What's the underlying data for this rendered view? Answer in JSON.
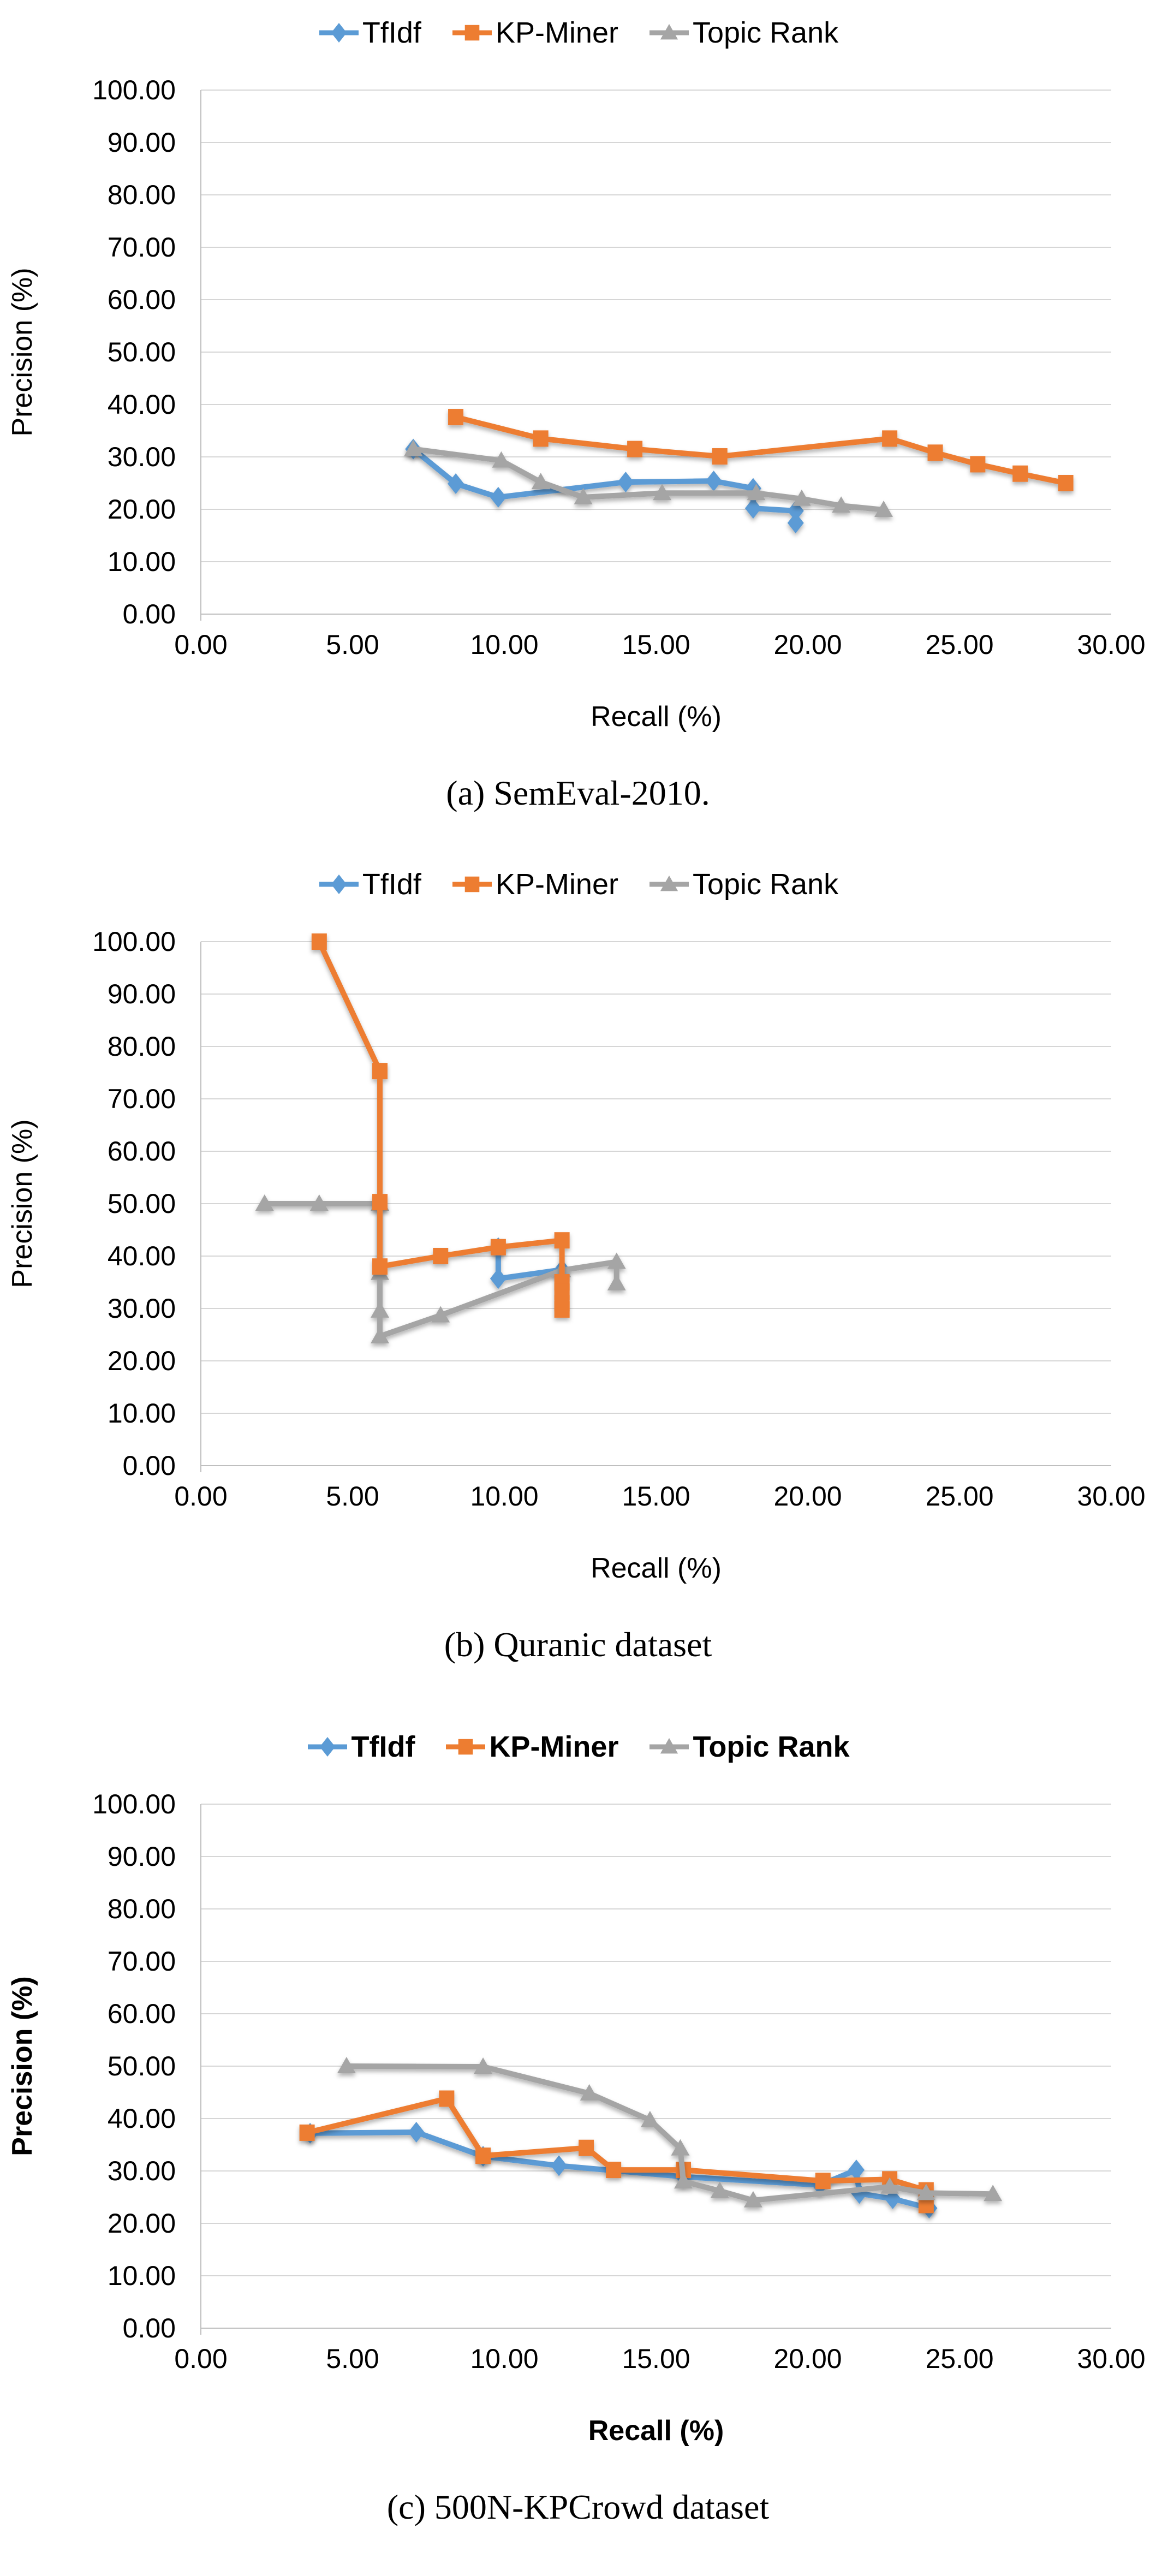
{
  "figure": {
    "background": "#ffffff",
    "text_color": "#000000",
    "gridline_color": "#D6D6D6",
    "axis_line_color": "#BFBFBF"
  },
  "chart_data": [
    {
      "id": "a",
      "type": "line",
      "caption": "(a) SemEval-2010.",
      "xlabel": "Recall (%)",
      "ylabel": "Precision (%)",
      "xlim": [
        0,
        30
      ],
      "ylim": [
        0,
        100
      ],
      "x_tick_step": 5,
      "y_tick_step": 10,
      "tick_decimals": 2,
      "grid": true,
      "legend_position": "top-center",
      "bold_labels": false,
      "draw_order": [
        0,
        2,
        1
      ],
      "series": [
        {
          "name": "TfIdf",
          "color": "#5B9BD5",
          "marker": "diamond",
          "points": [
            [
              7.0,
              31.5
            ],
            [
              8.4,
              24.9
            ],
            [
              9.8,
              22.3
            ],
            [
              14.0,
              25.2
            ],
            [
              16.9,
              25.4
            ],
            [
              18.2,
              24.0
            ],
            [
              18.2,
              20.2
            ],
            [
              19.6,
              19.7
            ],
            [
              19.6,
              17.4
            ]
          ]
        },
        {
          "name": "KP-Miner",
          "color": "#ED7D31",
          "marker": "square",
          "points": [
            [
              8.4,
              37.6
            ],
            [
              11.2,
              33.5
            ],
            [
              14.3,
              31.5
            ],
            [
              17.1,
              30.1
            ],
            [
              22.7,
              33.5
            ],
            [
              24.2,
              30.8
            ],
            [
              25.6,
              28.6
            ],
            [
              27.0,
              26.8
            ],
            [
              28.5,
              25.0
            ]
          ]
        },
        {
          "name": "Topic Rank",
          "color": "#A5A5A5",
          "marker": "triangle",
          "points": [
            [
              7.0,
              31.5
            ],
            [
              9.9,
              29.3
            ],
            [
              11.2,
              25.2
            ],
            [
              12.6,
              22.3
            ],
            [
              15.2,
              23.1
            ],
            [
              18.3,
              23.1
            ],
            [
              19.8,
              22.0
            ],
            [
              21.1,
              20.7
            ],
            [
              22.5,
              19.9
            ]
          ]
        }
      ]
    },
    {
      "id": "b",
      "type": "line",
      "caption": "(b) Quranic dataset",
      "xlabel": "Recall (%)",
      "ylabel": "Precision (%)",
      "xlim": [
        0,
        30
      ],
      "ylim": [
        0,
        100
      ],
      "x_tick_step": 5,
      "y_tick_step": 10,
      "tick_decimals": 2,
      "grid": true,
      "legend_position": "top-center",
      "bold_labels": false,
      "draw_order": [
        0,
        2,
        1
      ],
      "series": [
        {
          "name": "TfIdf",
          "color": "#5B9BD5",
          "marker": "diamond",
          "points": [
            [
              9.8,
              41.6
            ],
            [
              9.8,
              35.7
            ],
            [
              11.9,
              37.4
            ]
          ]
        },
        {
          "name": "KP-Miner",
          "color": "#ED7D31",
          "marker": "square",
          "points": [
            [
              3.9,
              100.0
            ],
            [
              5.9,
              75.3
            ],
            [
              5.9,
              50.3
            ],
            [
              5.9,
              38.0
            ],
            [
              7.9,
              40.0
            ],
            [
              9.8,
              41.7
            ],
            [
              11.9,
              43.0
            ],
            [
              11.9,
              35.0
            ],
            [
              11.9,
              33.2
            ],
            [
              11.9,
              31.0
            ],
            [
              11.9,
              29.8
            ]
          ]
        },
        {
          "name": "Topic Rank",
          "color": "#A5A5A5",
          "marker": "triangle",
          "points": [
            [
              2.1,
              50.0
            ],
            [
              3.9,
              50.0
            ],
            [
              5.9,
              50.0
            ],
            [
              5.9,
              36.8
            ],
            [
              5.9,
              29.6
            ],
            [
              5.9,
              24.7
            ],
            [
              7.9,
              28.7
            ],
            [
              11.9,
              37.3
            ],
            [
              13.7,
              38.9
            ],
            [
              13.7,
              34.8
            ]
          ]
        }
      ]
    },
    {
      "id": "c",
      "type": "line",
      "caption": "(c) 500N-KPCrowd dataset",
      "xlabel": "Recall (%)",
      "ylabel": "Precision (%)",
      "xlim": [
        0,
        30
      ],
      "ylim": [
        0,
        100
      ],
      "x_tick_step": 5,
      "y_tick_step": 10,
      "tick_decimals": 2,
      "grid": true,
      "legend_position": "top-center",
      "bold_labels": true,
      "draw_order": [
        0,
        1,
        2
      ],
      "series": [
        {
          "name": "TfIdf",
          "color": "#5B9BD5",
          "marker": "diamond",
          "points": [
            [
              3.6,
              37.2
            ],
            [
              7.1,
              37.4
            ],
            [
              9.3,
              32.8
            ],
            [
              11.8,
              31.0
            ],
            [
              15.9,
              28.9
            ],
            [
              20.4,
              27.3
            ],
            [
              21.6,
              30.2
            ],
            [
              21.7,
              25.7
            ],
            [
              22.8,
              24.7
            ],
            [
              24.0,
              22.9
            ]
          ]
        },
        {
          "name": "KP-Miner",
          "color": "#ED7D31",
          "marker": "square",
          "points": [
            [
              3.5,
              37.3
            ],
            [
              8.1,
              43.8
            ],
            [
              9.3,
              32.9
            ],
            [
              12.7,
              34.4
            ],
            [
              13.6,
              30.2
            ],
            [
              15.9,
              30.2
            ],
            [
              20.5,
              28.1
            ],
            [
              22.7,
              28.4
            ],
            [
              23.9,
              26.3
            ],
            [
              23.9,
              23.5
            ]
          ]
        },
        {
          "name": "Topic Rank",
          "color": "#A5A5A5",
          "marker": "triangle",
          "points": [
            [
              4.8,
              50.0
            ],
            [
              9.3,
              49.9
            ],
            [
              12.8,
              44.8
            ],
            [
              14.8,
              39.7
            ],
            [
              15.8,
              34.3
            ],
            [
              15.9,
              28.0
            ],
            [
              17.1,
              26.2
            ],
            [
              18.2,
              24.4
            ],
            [
              22.7,
              27.0
            ],
            [
              23.9,
              25.8
            ],
            [
              26.1,
              25.6
            ]
          ]
        }
      ]
    }
  ]
}
